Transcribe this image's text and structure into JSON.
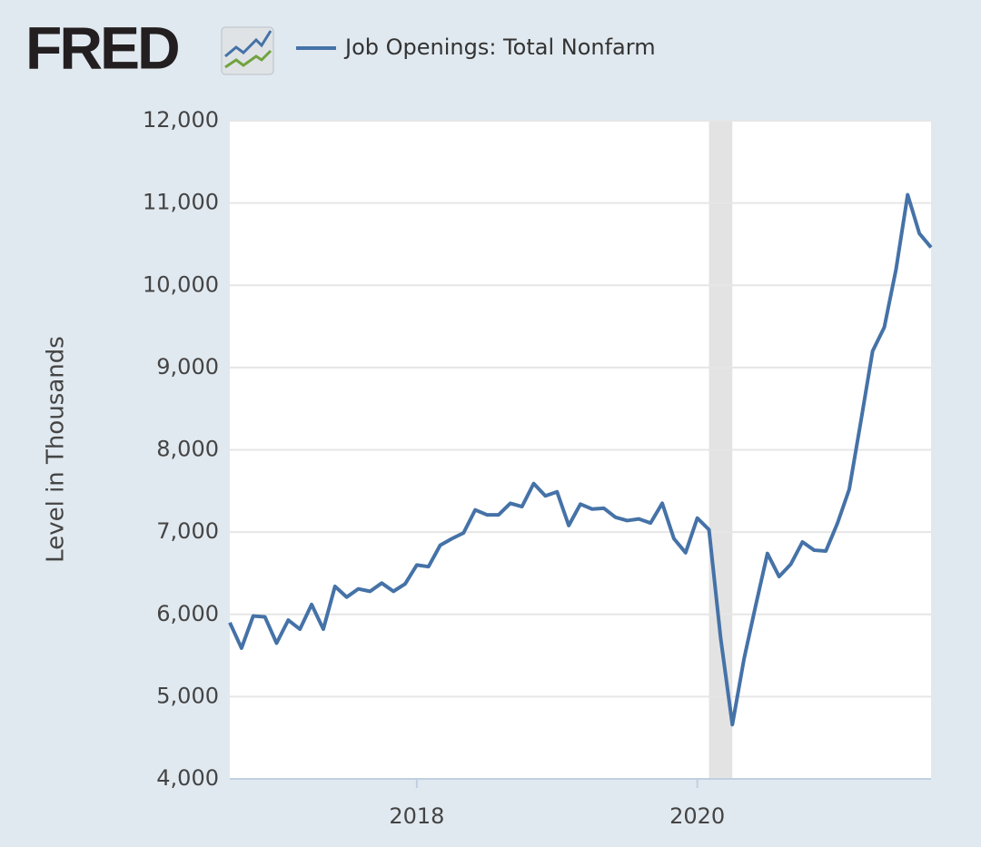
{
  "logo": "FRED",
  "chart_data": {
    "type": "line",
    "y_label": "Level in Thousands",
    "x": [
      "2016-09",
      "2016-10",
      "2016-11",
      "2016-12",
      "2017-01",
      "2017-02",
      "2017-03",
      "2017-04",
      "2017-05",
      "2017-06",
      "2017-07",
      "2017-08",
      "2017-09",
      "2017-10",
      "2017-11",
      "2017-12",
      "2018-01",
      "2018-02",
      "2018-03",
      "2018-04",
      "2018-05",
      "2018-06",
      "2018-07",
      "2018-08",
      "2018-09",
      "2018-10",
      "2018-11",
      "2018-12",
      "2019-01",
      "2019-02",
      "2019-03",
      "2019-04",
      "2019-05",
      "2019-06",
      "2019-07",
      "2019-08",
      "2019-09",
      "2019-10",
      "2019-11",
      "2019-12",
      "2020-01",
      "2020-02",
      "2020-03",
      "2020-04",
      "2020-05",
      "2020-06",
      "2020-07",
      "2020-08",
      "2020-09",
      "2020-10",
      "2020-11",
      "2020-12",
      "2021-01",
      "2021-02",
      "2021-03",
      "2021-04",
      "2021-05",
      "2021-06",
      "2021-07",
      "2021-08",
      "2021-09"
    ],
    "series": [
      {
        "name": "Job Openings: Total Nonfarm",
        "color": "#4572a7",
        "values": [
          5900,
          5590,
          5980,
          5970,
          5650,
          5930,
          5820,
          6120,
          5820,
          6340,
          6210,
          6310,
          6280,
          6380,
          6280,
          6370,
          6600,
          6580,
          6840,
          6920,
          6990,
          7270,
          7210,
          7210,
          7350,
          7310,
          7590,
          7440,
          7490,
          7080,
          7340,
          7280,
          7290,
          7180,
          7140,
          7160,
          7110,
          7350,
          6920,
          6750,
          7170,
          7030,
          5710,
          4660,
          5460,
          6110,
          6740,
          6460,
          6610,
          6880,
          6780,
          6770,
          7110,
          7520,
          8350,
          9200,
          9490,
          10190,
          11100,
          10630,
          10460
        ]
      }
    ],
    "recessions": [
      {
        "start": "2020-02",
        "end": "2020-04"
      }
    ],
    "xlim": [
      "2016-09",
      "2021-09"
    ],
    "xticks": [
      {
        "value": "2018-01",
        "label": "2018"
      },
      {
        "value": "2020-01",
        "label": "2020"
      }
    ],
    "ylim": [
      4000,
      12000
    ],
    "yticks": [
      {
        "value": 4000,
        "label": "4,000"
      },
      {
        "value": 5000,
        "label": "5,000"
      },
      {
        "value": 6000,
        "label": "6,000"
      },
      {
        "value": 7000,
        "label": "7,000"
      },
      {
        "value": 8000,
        "label": "8,000"
      },
      {
        "value": 9000,
        "label": "9,000"
      },
      {
        "value": 10000,
        "label": "10,000"
      },
      {
        "value": 11000,
        "label": "11,000"
      },
      {
        "value": 12000,
        "label": "12,000"
      }
    ],
    "grid": true
  }
}
